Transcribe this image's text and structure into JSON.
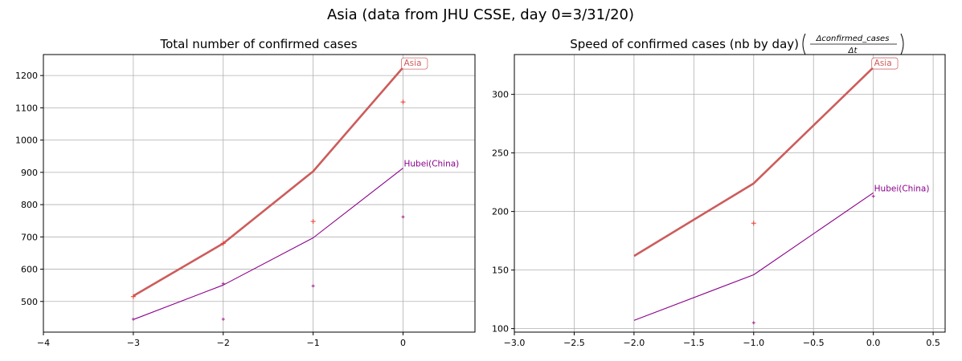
{
  "figure": {
    "suptitle": "Asia (data from JHU CSSE, day 0=3/31/20)"
  },
  "chart_data": [
    {
      "type": "line",
      "title": "Total number of confirmed cases",
      "xlim": [
        -4,
        0.8
      ],
      "ylim": [
        405,
        1265
      ],
      "xticks": [
        -4,
        -3,
        -2,
        -1,
        0
      ],
      "yticks": [
        500,
        600,
        700,
        800,
        900,
        1000,
        1100,
        1200
      ],
      "grid": true,
      "series": [
        {
          "name": "Asia",
          "color": "#cd5c5c",
          "x": [
            -3,
            -2,
            -1,
            0
          ],
          "values": [
            517,
            680,
            903,
            1225
          ],
          "markers": [
            [
              -3,
              515
            ],
            [
              -2,
              680
            ],
            [
              -1,
              748
            ],
            [
              0,
              1118
            ]
          ],
          "marker_color": "#e8392b"
        },
        {
          "name": "Hubei(China)",
          "color": "#8b008b",
          "x": [
            -3,
            -2,
            -1,
            0
          ],
          "values": [
            444,
            551,
            697,
            913
          ],
          "markers": [
            [
              -3,
              445
            ],
            [
              -2,
              555
            ],
            [
              -2,
              445
            ],
            [
              -1,
              548
            ],
            [
              0,
              762
            ]
          ],
          "marker_color": "#a0208f"
        }
      ]
    },
    {
      "type": "line",
      "title": "Speed of confirmed cases (nb by day)",
      "title_formula_num": "Δconfirmed_cases",
      "title_formula_den": "Δt",
      "xlim": [
        -3.0,
        0.6
      ],
      "ylim": [
        97,
        334
      ],
      "xticks": [
        -3.0,
        -2.5,
        -2.0,
        -1.5,
        -1.0,
        -0.5,
        0.0,
        0.5
      ],
      "xtick_labels": [
        "−3.0",
        "−2.5",
        "−2.0",
        "−1.5",
        "−1.0",
        "−0.5",
        "0.0",
        "0.5"
      ],
      "yticks": [
        100,
        150,
        200,
        250,
        300
      ],
      "grid": true,
      "series": [
        {
          "name": "Asia",
          "color": "#cd5c5c",
          "x": [
            -2,
            -1,
            0
          ],
          "values": [
            162,
            224,
            323
          ],
          "markers": [
            [
              -1,
              190
            ]
          ],
          "marker_color": "#e8392b"
        },
        {
          "name": "Hubei(China)",
          "color": "#8b008b",
          "x": [
            -2,
            -1,
            0
          ],
          "values": [
            107,
            146,
            216
          ],
          "markers": [
            [
              -1,
              105
            ],
            [
              0,
              213
            ]
          ],
          "marker_color": "#a0208f"
        }
      ]
    }
  ]
}
